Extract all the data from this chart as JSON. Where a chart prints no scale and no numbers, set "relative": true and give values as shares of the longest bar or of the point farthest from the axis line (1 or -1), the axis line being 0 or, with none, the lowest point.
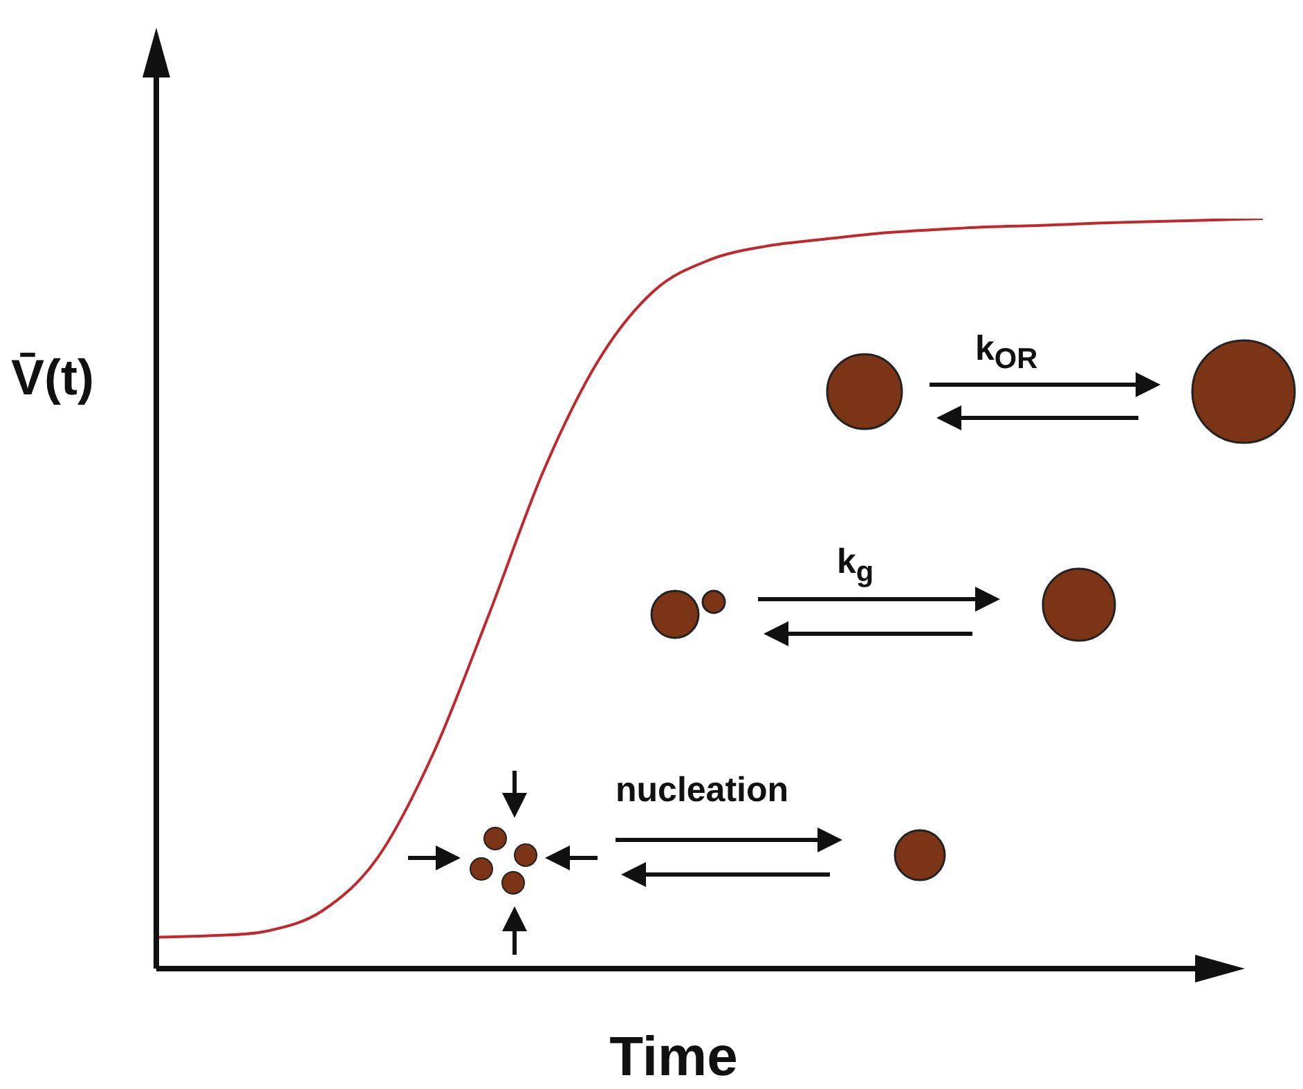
{
  "chart_data": {
    "type": "line",
    "relative": true,
    "xlabel": "Time",
    "ylabel": "V̄(t)",
    "categories": [
      null,
      null,
      null,
      null,
      null,
      null,
      null,
      null,
      null,
      null,
      null,
      null,
      null,
      null,
      null,
      null,
      null,
      null,
      null,
      null,
      null
    ],
    "series": [
      {
        "color": "#c0282d",
        "values": [
          0.042,
          0.044,
          0.05,
          0.077,
          0.148,
          0.286,
          0.47,
          0.664,
          0.812,
          0.904,
          0.945,
          0.963,
          0.972,
          0.98,
          0.985,
          0.989,
          0.991,
          0.994,
          0.996,
          0.998,
          1
        ]
      }
    ],
    "annotations": [
      "k$_{OR}$",
      "k$_{g}$",
      "nucleation"
    ],
    "legend": false
  }
}
